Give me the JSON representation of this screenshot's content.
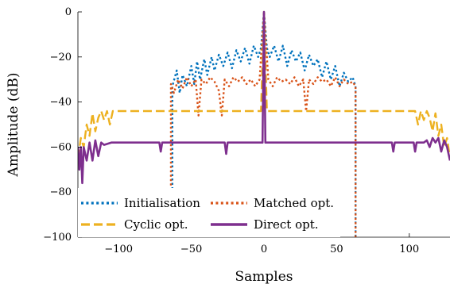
{
  "chart_data": {
    "type": "line",
    "title": "",
    "xlabel": "Samples",
    "ylabel": "Amplitude (dB)",
    "xlim": [
      -128,
      128
    ],
    "ylim": [
      -100,
      0
    ],
    "xticks": [
      -100,
      -50,
      0,
      50,
      100
    ],
    "yticks": [
      0,
      -20,
      -40,
      -60,
      -80,
      -100
    ],
    "xtick_labels": [
      "−100",
      "−50",
      "0",
      "50",
      "100"
    ],
    "ytick_labels": [
      "0",
      "−20",
      "−40",
      "−60",
      "−80",
      "−100"
    ],
    "grid": false,
    "legend_position": "bottom-left",
    "series": [
      {
        "name": "Initialisation",
        "color": "#0072BD",
        "style": "dotted",
        "points": [
          [
            -63,
            -100
          ],
          [
            -63,
            -33
          ],
          [
            -60,
            -26
          ],
          [
            -58,
            -36
          ],
          [
            -56,
            -28
          ],
          [
            -53,
            -33
          ],
          [
            -50,
            -24
          ],
          [
            -48,
            -32
          ],
          [
            -46,
            -22
          ],
          [
            -44,
            -30
          ],
          [
            -41,
            -21
          ],
          [
            -39,
            -28
          ],
          [
            -36,
            -20
          ],
          [
            -34,
            -26
          ],
          [
            -31,
            -19
          ],
          [
            -28,
            -24
          ],
          [
            -25,
            -18
          ],
          [
            -22,
            -25
          ],
          [
            -19,
            -17
          ],
          [
            -16,
            -22
          ],
          [
            -13,
            -16
          ],
          [
            -10,
            -23
          ],
          [
            -7,
            -15
          ],
          [
            -4,
            -20
          ],
          [
            -2,
            -16
          ],
          [
            0,
            0
          ],
          [
            2,
            -16
          ],
          [
            4,
            -20
          ],
          [
            7,
            -15
          ],
          [
            10,
            -22
          ],
          [
            13,
            -15
          ],
          [
            16,
            -24
          ],
          [
            19,
            -17
          ],
          [
            22,
            -22
          ],
          [
            25,
            -18
          ],
          [
            28,
            -26
          ],
          [
            31,
            -19
          ],
          [
            34,
            -24
          ],
          [
            37,
            -21
          ],
          [
            40,
            -29
          ],
          [
            43,
            -22
          ],
          [
            46,
            -30
          ],
          [
            49,
            -24
          ],
          [
            52,
            -33
          ],
          [
            55,
            -27
          ],
          [
            58,
            -31
          ],
          [
            61,
            -29
          ],
          [
            63,
            -33
          ],
          [
            63,
            -100
          ]
        ]
      },
      {
        "name": "Matched opt.",
        "color": "#D95319",
        "style": "dotted",
        "points": [
          [
            -64,
            -77
          ],
          [
            -64,
            -32
          ],
          [
            -62,
            -36
          ],
          [
            -59,
            -30
          ],
          [
            -56,
            -34
          ],
          [
            -53,
            -29
          ],
          [
            -50,
            -33
          ],
          [
            -47,
            -30
          ],
          [
            -45,
            -46
          ],
          [
            -43,
            -30
          ],
          [
            -40,
            -32
          ],
          [
            -37,
            -29
          ],
          [
            -34,
            -31
          ],
          [
            -31,
            -35
          ],
          [
            -29,
            -46
          ],
          [
            -27,
            -30
          ],
          [
            -24,
            -33
          ],
          [
            -21,
            -29
          ],
          [
            -18,
            -31
          ],
          [
            -15,
            -29
          ],
          [
            -12,
            -32
          ],
          [
            -9,
            -30
          ],
          [
            -6,
            -33
          ],
          [
            -3,
            -30
          ],
          [
            0,
            0
          ],
          [
            3,
            -30
          ],
          [
            6,
            -33
          ],
          [
            9,
            -29
          ],
          [
            12,
            -31
          ],
          [
            15,
            -30
          ],
          [
            18,
            -32
          ],
          [
            21,
            -29
          ],
          [
            24,
            -33
          ],
          [
            27,
            -30
          ],
          [
            29,
            -44
          ],
          [
            31,
            -30
          ],
          [
            34,
            -32
          ],
          [
            37,
            -29
          ],
          [
            40,
            -31
          ],
          [
            43,
            -30
          ],
          [
            46,
            -33
          ],
          [
            49,
            -29
          ],
          [
            52,
            -33
          ],
          [
            55,
            -30
          ],
          [
            58,
            -32
          ],
          [
            61,
            -31
          ],
          [
            63,
            -33
          ],
          [
            63,
            -100
          ]
        ]
      },
      {
        "name": "Cyclic opt.",
        "color": "#EDB120",
        "style": "dashed",
        "points": [
          [
            -128,
            -65
          ],
          [
            -126,
            -56
          ],
          [
            -124,
            -60
          ],
          [
            -122,
            -50
          ],
          [
            -120,
            -55
          ],
          [
            -118,
            -45
          ],
          [
            -116,
            -53
          ],
          [
            -114,
            -47
          ],
          [
            -112,
            -44
          ],
          [
            -110,
            -48
          ],
          [
            -108,
            -44
          ],
          [
            -106,
            -50
          ],
          [
            -104,
            -44
          ],
          [
            -100,
            -44
          ],
          [
            -90,
            -44
          ],
          [
            -80,
            -44
          ],
          [
            -70,
            -44
          ],
          [
            -60,
            -44
          ],
          [
            -50,
            -44
          ],
          [
            -40,
            -44
          ],
          [
            -30,
            -44
          ],
          [
            -20,
            -44
          ],
          [
            -10,
            -44
          ],
          [
            -2,
            -44
          ],
          [
            0,
            0
          ],
          [
            2,
            -44
          ],
          [
            10,
            -44
          ],
          [
            20,
            -44
          ],
          [
            30,
            -44
          ],
          [
            40,
            -44
          ],
          [
            50,
            -44
          ],
          [
            60,
            -44
          ],
          [
            70,
            -44
          ],
          [
            80,
            -44
          ],
          [
            90,
            -44
          ],
          [
            100,
            -44
          ],
          [
            104,
            -44
          ],
          [
            106,
            -50
          ],
          [
            108,
            -44
          ],
          [
            110,
            -48
          ],
          [
            112,
            -44
          ],
          [
            114,
            -47
          ],
          [
            116,
            -53
          ],
          [
            118,
            -45
          ],
          [
            120,
            -55
          ],
          [
            122,
            -50
          ],
          [
            124,
            -60
          ],
          [
            126,
            -56
          ],
          [
            128,
            -65
          ]
        ]
      },
      {
        "name": "Direct opt.",
        "color": "#7E2F8E",
        "style": "solid",
        "points": [
          [
            -128,
            -60
          ],
          [
            -127,
            -70
          ],
          [
            -126,
            -60
          ],
          [
            -125,
            -76
          ],
          [
            -124,
            -60
          ],
          [
            -122,
            -66
          ],
          [
            -120,
            -58
          ],
          [
            -118,
            -66
          ],
          [
            -116,
            -57
          ],
          [
            -114,
            -64
          ],
          [
            -112,
            -58
          ],
          [
            -110,
            -59
          ],
          [
            -105,
            -58
          ],
          [
            -100,
            -58
          ],
          [
            -95,
            -58
          ],
          [
            -90,
            -58
          ],
          [
            -85,
            -58
          ],
          [
            -80,
            -58
          ],
          [
            -75,
            -58
          ],
          [
            -72,
            -58
          ],
          [
            -71,
            -62
          ],
          [
            -70,
            -58
          ],
          [
            -65,
            -58
          ],
          [
            -60,
            -58
          ],
          [
            -55,
            -58
          ],
          [
            -50,
            -58
          ],
          [
            -45,
            -58
          ],
          [
            -40,
            -58
          ],
          [
            -35,
            -58
          ],
          [
            -30,
            -58
          ],
          [
            -27,
            -58
          ],
          [
            -26,
            -63
          ],
          [
            -25,
            -58
          ],
          [
            -20,
            -58
          ],
          [
            -15,
            -58
          ],
          [
            -10,
            -58
          ],
          [
            -5,
            -58
          ],
          [
            -1,
            -58
          ],
          [
            0,
            0
          ],
          [
            1,
            -58
          ],
          [
            5,
            -58
          ],
          [
            10,
            -58
          ],
          [
            15,
            -58
          ],
          [
            20,
            -58
          ],
          [
            25,
            -58
          ],
          [
            30,
            -58
          ],
          [
            35,
            -58
          ],
          [
            40,
            -58
          ],
          [
            45,
            -58
          ],
          [
            50,
            -58
          ],
          [
            55,
            -58
          ],
          [
            60,
            -58
          ],
          [
            65,
            -58
          ],
          [
            70,
            -58
          ],
          [
            75,
            -58
          ],
          [
            80,
            -58
          ],
          [
            85,
            -58
          ],
          [
            88,
            -58
          ],
          [
            89,
            -62
          ],
          [
            90,
            -58
          ],
          [
            95,
            -58
          ],
          [
            100,
            -58
          ],
          [
            103,
            -58
          ],
          [
            104,
            -62
          ],
          [
            105,
            -58
          ],
          [
            110,
            -58
          ],
          [
            112,
            -57
          ],
          [
            114,
            -60
          ],
          [
            116,
            -56
          ],
          [
            118,
            -58
          ],
          [
            120,
            -56
          ],
          [
            122,
            -62
          ],
          [
            124,
            -57
          ],
          [
            126,
            -60
          ],
          [
            128,
            -66
          ]
        ]
      }
    ]
  }
}
